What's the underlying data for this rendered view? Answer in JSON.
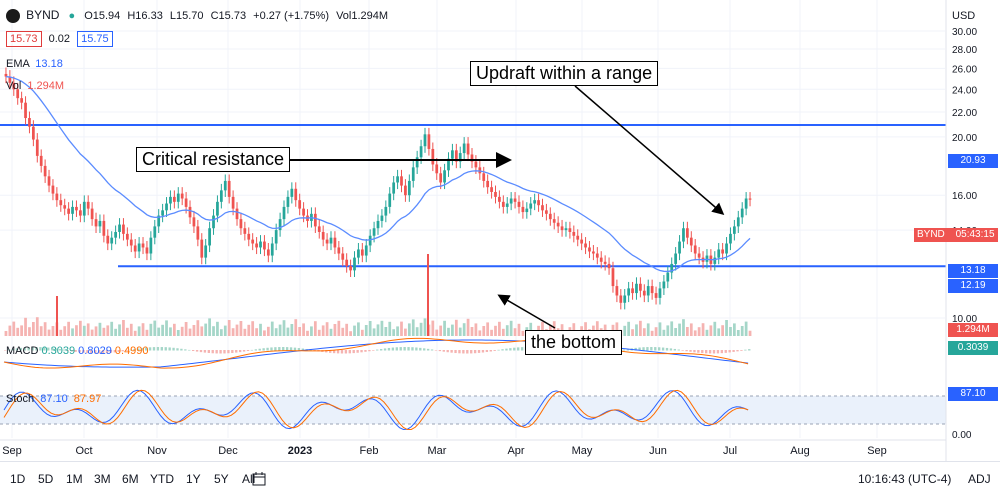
{
  "header": {
    "symbol": "BYND",
    "ohlc": {
      "open": "O15.94",
      "high": "H16.33",
      "low": "L15.70",
      "close": "C15.73",
      "change": "+0.27 (+1.75%)",
      "vol": "Vol1.294M"
    },
    "bid": "15.73",
    "spread": "0.02",
    "ask": "15.75",
    "ema_label": "EMA",
    "ema_value": "13.18",
    "vol_label": "Vol",
    "vol_value": "1.294M",
    "macd_label": "MACD",
    "macd_v1": "0.3039",
    "macd_v2": "0.8029",
    "macd_v3": "0.4990",
    "stoch_label": "Stoch",
    "stoch_v1": "87.10",
    "stoch_v2": "87.97",
    "currency": "USD"
  },
  "annotations": {
    "resistance": "Critical resistance",
    "range": "Updraft within a range",
    "bottom": "the bottom"
  },
  "price_tags": {
    "resistance": "20.93",
    "byn_symbol": "BYND",
    "countdown": "05:43:15",
    "ema": "13.18",
    "support": "12.19",
    "vol": "1.294M",
    "macd": "0.3039",
    "stoch": "87.10"
  },
  "colors": {
    "up": "#26a69a",
    "down": "#ef5350",
    "ema": "#2962ff",
    "level": "#2962ff",
    "macd": "#2962ff",
    "signal": "#ff6d00"
  },
  "toolbar": {
    "ranges": [
      "1D",
      "5D",
      "1M",
      "3M",
      "6M",
      "YTD",
      "1Y",
      "5Y",
      "All"
    ],
    "time": "10:16:43 (UTC-4)",
    "adj": "ADJ"
  },
  "chart_data": {
    "type": "candlestick",
    "title": "BYND",
    "x_labels": [
      "Sep",
      "Oct",
      "Nov",
      "Dec",
      "2023",
      "Feb",
      "Mar",
      "Apr",
      "May",
      "Jun",
      "Jul",
      "Aug",
      "Sep"
    ],
    "y_ticks": [
      "30.00",
      "28.00",
      "26.00",
      "24.00",
      "22.00",
      "20.00",
      "16.00",
      "14.00",
      "10.00"
    ],
    "stoch_ticks": [
      "0.00"
    ],
    "log_scale": true,
    "levels": {
      "resistance": 20.93,
      "support": 12.19
    },
    "closes": [
      25.2,
      24.6,
      24.0,
      23.2,
      22.8,
      21.5,
      20.8,
      19.8,
      18.6,
      17.9,
      17.2,
      16.6,
      16.1,
      15.7,
      15.4,
      15.2,
      14.9,
      15.3,
      15.1,
      14.8,
      15.6,
      15.2,
      14.6,
      14.2,
      14.5,
      13.7,
      13.3,
      13.6,
      13.9,
      14.3,
      13.8,
      13.5,
      13.2,
      12.9,
      13.3,
      13.1,
      12.8,
      13.6,
      14.2,
      14.8,
      15.1,
      15.5,
      15.9,
      15.6,
      16.1,
      15.8,
      15.3,
      14.7,
      14.2,
      13.5,
      12.6,
      13.2,
      14.1,
      14.8,
      15.6,
      16.3,
      16.9,
      15.9,
      15.2,
      14.6,
      14.1,
      13.8,
      13.5,
      13.3,
      13.1,
      13.4,
      13.0,
      12.7,
      13.3,
      14.0,
      14.6,
      15.3,
      15.9,
      16.4,
      15.7,
      15.2,
      14.8,
      14.5,
      14.9,
      14.2,
      13.9,
      13.5,
      13.3,
      13.6,
      13.1,
      12.8,
      12.5,
      12.2,
      12.0,
      12.6,
      13.0,
      12.7,
      13.2,
      13.7,
      14.1,
      14.5,
      14.8,
      15.3,
      16.1,
      16.8,
      17.2,
      16.6,
      16.0,
      16.9,
      17.8,
      18.5,
      19.3,
      20.2,
      19.1,
      18.0,
      17.4,
      16.8,
      17.6,
      18.4,
      19.0,
      18.2,
      18.8,
      19.5,
      18.7,
      18.2,
      17.8,
      17.4,
      16.9,
      16.5,
      16.2,
      15.9,
      15.6,
      15.3,
      15.5,
      15.8,
      15.6,
      15.3,
      15.0,
      15.2,
      15.5,
      15.7,
      15.4,
      15.1,
      14.9,
      14.6,
      14.4,
      14.2,
      14.0,
      14.1,
      13.9,
      13.7,
      13.5,
      13.3,
      13.1,
      12.9,
      12.8,
      12.6,
      12.4,
      12.3,
      12.1,
      11.3,
      10.9,
      10.6,
      10.9,
      11.2,
      11.0,
      11.4,
      11.1,
      10.9,
      11.3,
      11.0,
      10.8,
      11.2,
      11.5,
      11.9,
      12.3,
      12.8,
      13.4,
      14.1,
      13.6,
      13.2,
      12.8,
      12.6,
      12.4,
      12.7,
      12.3,
      12.6,
      13.0,
      12.8,
      13.3,
      13.8,
      14.2,
      14.7,
      15.2,
      15.8,
      15.73
    ],
    "vol_spikes": {
      "Feb-end": 1,
      "Oct": 0.6
    },
    "stoch_levels": [
      20,
      80
    ]
  }
}
